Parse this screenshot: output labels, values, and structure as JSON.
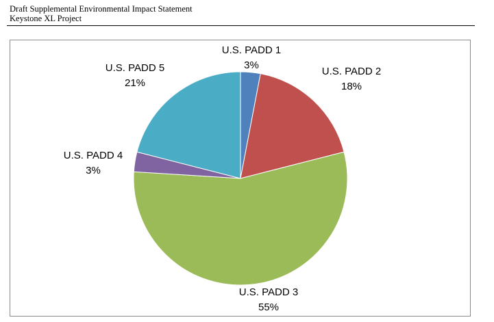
{
  "document": {
    "title_line1": "Draft Supplemental Environmental Impact Statement",
    "title_line2": "Keystone XL Project"
  },
  "chart_data": {
    "type": "pie",
    "title": "",
    "start_angle_deg": 0,
    "direction": "clockwise",
    "slices": [
      {
        "name": "U.S. PADD 1",
        "value": 3,
        "label": "3%",
        "color": "#4F81BD"
      },
      {
        "name": "U.S. PADD 2",
        "value": 18,
        "label": "18%",
        "color": "#C0504D"
      },
      {
        "name": "U.S. PADD 3",
        "value": 55,
        "label": "55%",
        "color": "#9BBB59"
      },
      {
        "name": "U.S. PADD 4",
        "value": 3,
        "label": "3%",
        "color": "#8064A2"
      },
      {
        "name": "U.S. PADD 5",
        "value": 21,
        "label": "21%",
        "color": "#4BACC6"
      }
    ]
  }
}
